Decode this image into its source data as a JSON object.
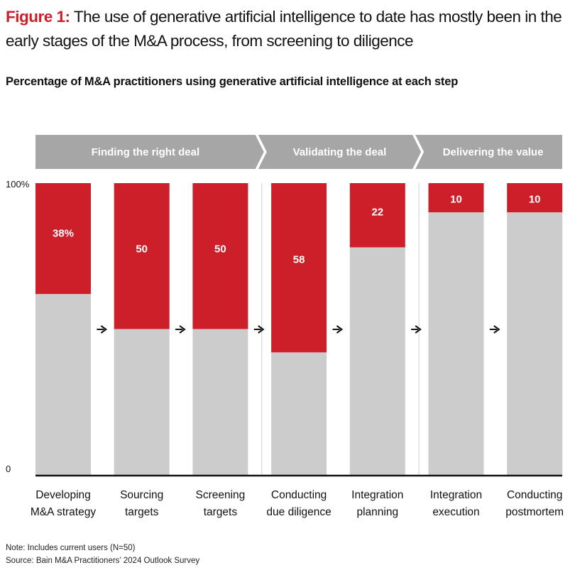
{
  "figure": {
    "label": "Figure 1:",
    "title": "The use of generative artificial intelligence to date has mostly been in the early stages of the M&A process, from screening to diligence",
    "subtitle": "Percentage of M&A practitioners using generative artificial intelligence at each step"
  },
  "colors": {
    "accent": "#cc1f2a",
    "bar_gray": "#cccccc",
    "phase_gray": "#a6a6a6"
  },
  "chart_data": {
    "type": "bar",
    "stacked": true,
    "phases": [
      {
        "label": "Finding the right deal",
        "categories": [
          0,
          1,
          2
        ]
      },
      {
        "label": "Validating the deal",
        "categories": [
          3,
          4
        ]
      },
      {
        "label": "Delivering the value",
        "categories": [
          5,
          6
        ]
      }
    ],
    "categories": [
      [
        "Developing",
        "M&A strategy"
      ],
      [
        "Sourcing",
        "targets"
      ],
      [
        "Screening",
        "targets"
      ],
      [
        "Conducting",
        "due diligence"
      ],
      [
        "Integration",
        "planning"
      ],
      [
        "Integration",
        "execution"
      ],
      [
        "Conducting",
        "postmortem"
      ]
    ],
    "values": [
      38,
      50,
      50,
      58,
      22,
      10,
      10
    ],
    "data_labels": [
      "38%",
      "50",
      "50",
      "58",
      "22",
      "10",
      "10"
    ],
    "ylim": [
      0,
      100
    ],
    "yticks": [
      "0",
      "100%"
    ],
    "flow_arrows": true
  },
  "notes": {
    "note": "Note: Includes current users (N=50)",
    "source": "Source: Bain M&A Practitioners’ 2024 Outlook Survey"
  }
}
